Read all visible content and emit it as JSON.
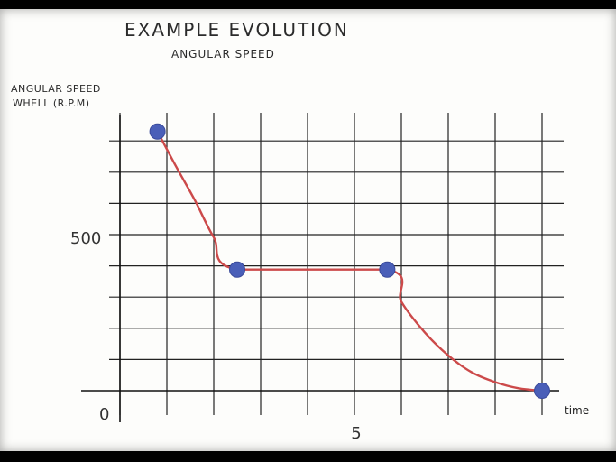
{
  "chart_data": {
    "type": "line",
    "title": "EXAMPLE EVOLUTION",
    "subtitle": "ANGULAR SPEED",
    "ylabel_line1": "ANGULAR SPEED",
    "ylabel_line2": "WHELL  (R.P.M)",
    "xlabel": "time",
    "xlim": [
      0,
      9.5
    ],
    "ylim": [
      0,
      850
    ],
    "x_ticks": [
      {
        "value": 5,
        "label": "5"
      }
    ],
    "y_ticks": [
      {
        "value": 500,
        "label": "500"
      }
    ],
    "origin_label": "0",
    "grid": true,
    "series": [
      {
        "points": [
          {
            "x": 0.8,
            "y": 845
          },
          {
            "x": 2.5,
            "y": 395
          },
          {
            "x": 5.7,
            "y": 395
          },
          {
            "x": 9.0,
            "y": 0
          }
        ],
        "curve": [
          {
            "x": 0.8,
            "y": 845
          },
          {
            "x": 1.2,
            "y": 730
          },
          {
            "x": 1.6,
            "y": 620
          },
          {
            "x": 2.0,
            "y": 500
          },
          {
            "x": 2.5,
            "y": 395
          },
          {
            "x": 5.7,
            "y": 395
          },
          {
            "x": 6.0,
            "y": 290
          },
          {
            "x": 6.5,
            "y": 190
          },
          {
            "x": 7.0,
            "y": 115
          },
          {
            "x": 7.5,
            "y": 60
          },
          {
            "x": 8.0,
            "y": 28
          },
          {
            "x": 8.5,
            "y": 8
          },
          {
            "x": 9.0,
            "y": 0
          }
        ],
        "line_color": "#cc4a4a",
        "marker_color": "#4a5fb8"
      }
    ]
  }
}
